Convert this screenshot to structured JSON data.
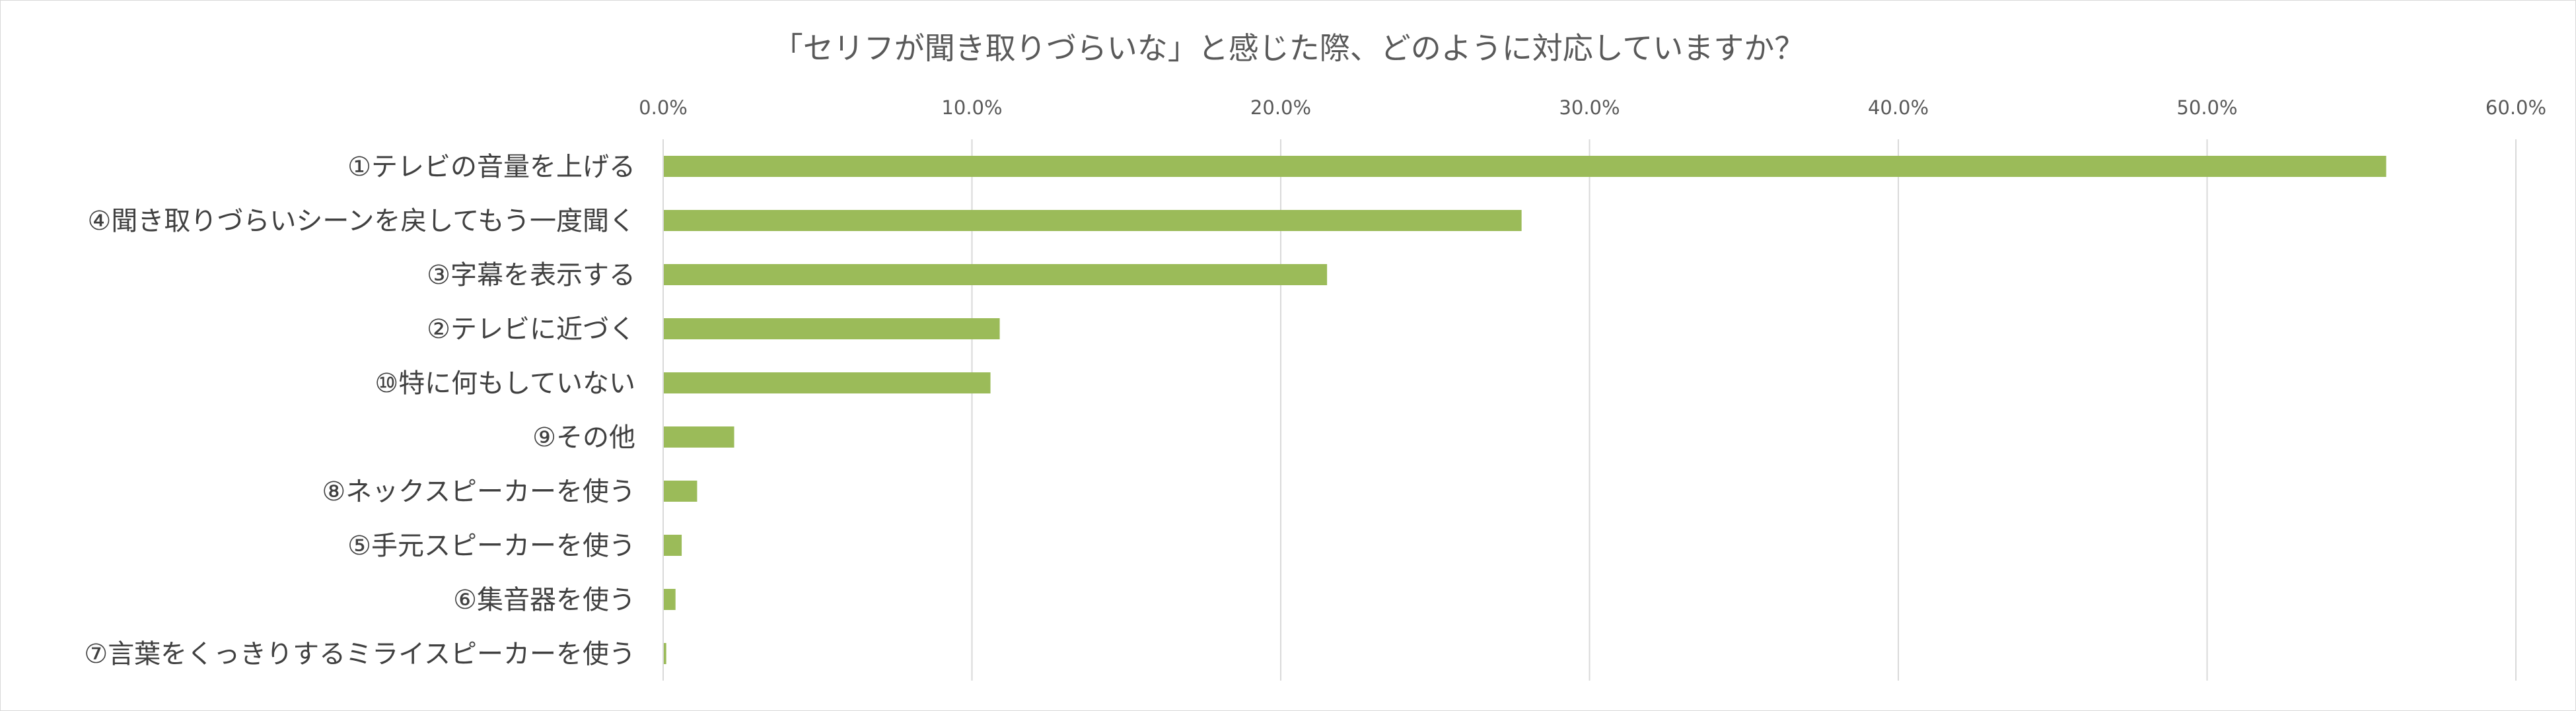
{
  "chart_data": {
    "type": "bar",
    "orientation": "horizontal",
    "title": "「セリフが聞き取りづらいな」と感じた際、どのように対応していますか？",
    "categories": [
      "①テレビの音量を上げる",
      "④聞き取りづらいシーンを戻してもう一度聞く",
      "③字幕を表示する",
      "②テレビに近づく",
      "⑩特に何もしていない",
      "⑨その他",
      "⑧ネックスピーカーを使う",
      "⑤手元スピーカーを使う",
      "⑥集音器を使う",
      "⑦言葉をくっきりするミライスピーカーを使う"
    ],
    "values": [
      55.8,
      27.8,
      21.5,
      10.9,
      10.6,
      2.3,
      1.1,
      0.6,
      0.4,
      0.1
    ],
    "unit": "%",
    "xlim": [
      0,
      60
    ],
    "xticks": [
      "0.0%",
      "10.0%",
      "20.0%",
      "30.0%",
      "40.0%",
      "50.0%",
      "60.0%"
    ],
    "axis_position": "top",
    "grid": true,
    "legend": "none",
    "bar_color": "#9BBB59",
    "grid_color": "#d9d9d9",
    "text_color": "#595959"
  }
}
